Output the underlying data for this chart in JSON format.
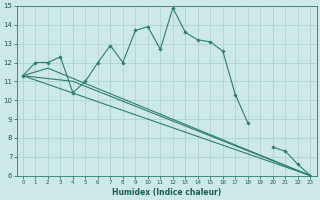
{
  "title": "",
  "xlabel": "Humidex (Indice chaleur)",
  "xlim": [
    -0.5,
    23.5
  ],
  "ylim": [
    6,
    15
  ],
  "yticks": [
    6,
    7,
    8,
    9,
    10,
    11,
    12,
    13,
    14,
    15
  ],
  "xticks": [
    0,
    1,
    2,
    3,
    4,
    5,
    6,
    7,
    8,
    9,
    10,
    11,
    12,
    13,
    14,
    15,
    16,
    17,
    18,
    19,
    20,
    21,
    22,
    23
  ],
  "bg_color": "#cce8ea",
  "grid_color": "#aacfd2",
  "line_color": "#2e7d6e",
  "main_series_x": [
    0,
    1,
    2,
    3,
    4,
    5,
    6,
    7,
    8,
    9,
    10,
    11,
    12,
    13,
    14,
    15,
    16,
    17,
    18,
    19,
    20,
    21,
    22,
    23
  ],
  "main_series_y": [
    11.3,
    12.0,
    12.0,
    12.3,
    10.4,
    11.0,
    12.0,
    12.9,
    12.0,
    13.7,
    13.9,
    12.7,
    14.9,
    13.6,
    13.2,
    13.1,
    12.6,
    10.3,
    8.8,
    null,
    7.5,
    7.3,
    6.6,
    6.0
  ],
  "straight_lines": [
    {
      "x": [
        0,
        23
      ],
      "y": [
        11.3,
        6.0
      ]
    },
    {
      "x": [
        0,
        4,
        23
      ],
      "y": [
        11.3,
        11.0,
        6.0
      ]
    },
    {
      "x": [
        0,
        2,
        23
      ],
      "y": [
        11.3,
        11.7,
        6.0
      ]
    }
  ]
}
